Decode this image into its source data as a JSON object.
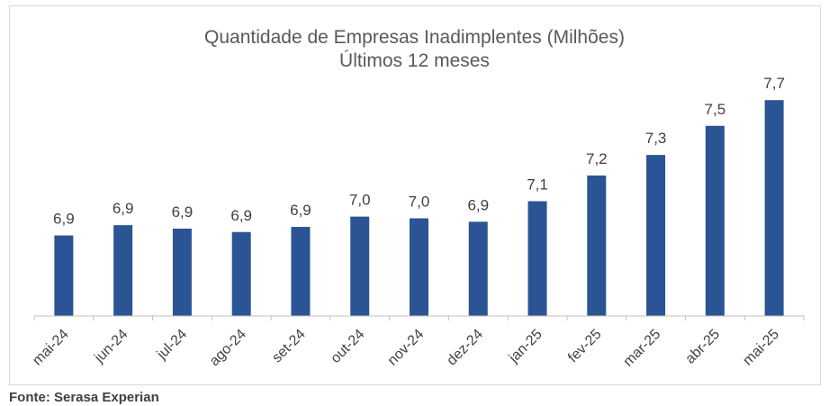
{
  "chart_data": {
    "type": "bar",
    "title": "Quantidade de Empresas Inadimplentes (Milhões)",
    "subtitle": "Últimos 12 meses",
    "categories": [
      "mai-24",
      "jun-24",
      "jul-24",
      "ago-24",
      "set-24",
      "out-24",
      "nov-24",
      "dez-24",
      "jan-25",
      "fev-25",
      "mar-25",
      "abr-25",
      "mai-25"
    ],
    "values": [
      6.87,
      6.93,
      6.91,
      6.89,
      6.92,
      6.98,
      6.97,
      6.95,
      7.07,
      7.22,
      7.34,
      7.51,
      7.66
    ],
    "data_labels": [
      "6,9",
      "6,9",
      "6,9",
      "6,9",
      "6,9",
      "7,0",
      "7,0",
      "6,9",
      "7,1",
      "7,2",
      "7,3",
      "7,5",
      "7,7"
    ],
    "ylim": [
      6.4,
      7.74
    ],
    "grid": false,
    "bar_color": "#2b5494",
    "xlabel": "",
    "ylabel": ""
  },
  "source": "Fonte: Serasa Experian"
}
